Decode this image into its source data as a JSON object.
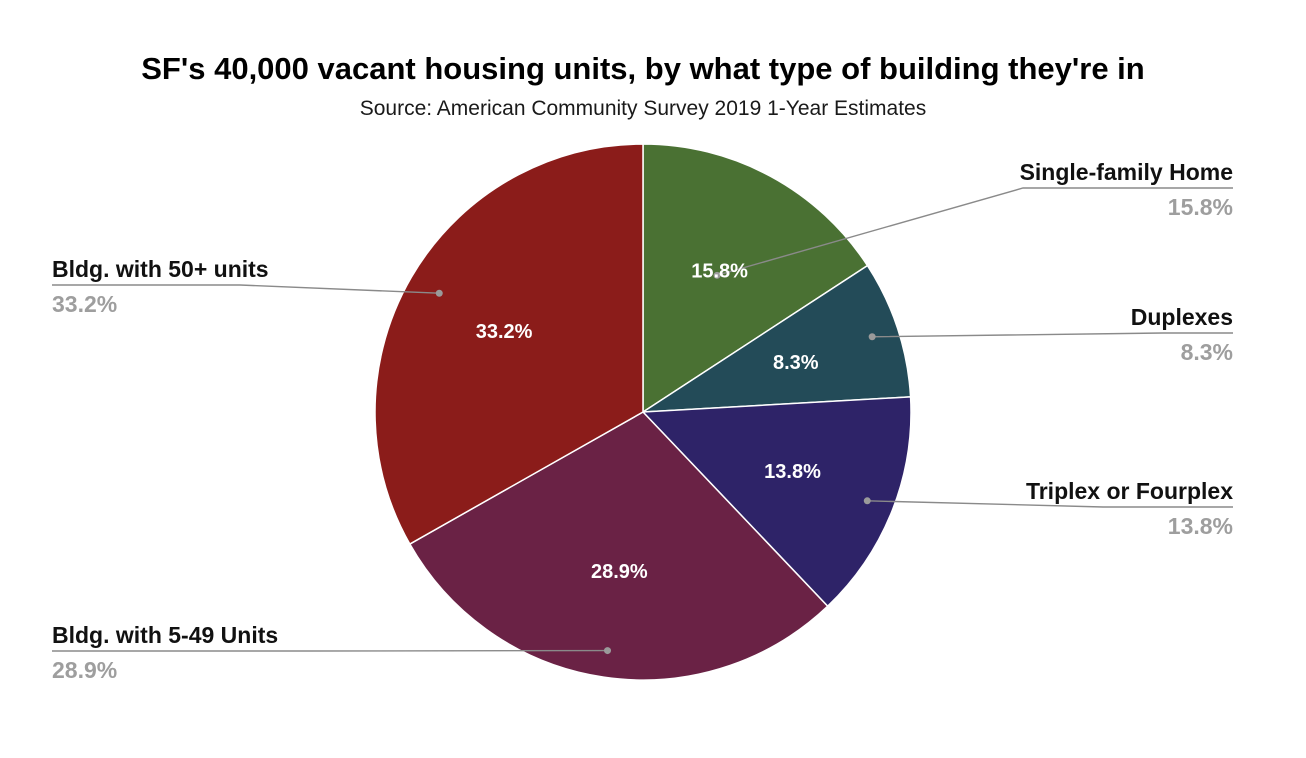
{
  "chart_data": {
    "type": "pie",
    "title": "SF's 40,000 vacant housing units, by what type of building they're in",
    "subtitle": "Source: American Community Survey 2019 1-Year Estimates",
    "legend": "labels-outside-with-leader-lines",
    "slices": [
      {
        "name": "Single-family Home",
        "value": 15.8,
        "label": "15.8%",
        "color": "#4a7133"
      },
      {
        "name": "Duplexes",
        "value": 8.3,
        "label": "8.3%",
        "color": "#234b58"
      },
      {
        "name": "Triplex or Fourplex",
        "value": 13.8,
        "label": "13.8%",
        "color": "#2e2368"
      },
      {
        "name": "Bldg. with 5-49 Units",
        "value": 28.9,
        "label": "28.9%",
        "color": "#6a2245"
      },
      {
        "name": "Bldg. with 50+ units",
        "value": 33.2,
        "label": "33.2%",
        "color": "#8b1c1a"
      }
    ]
  }
}
